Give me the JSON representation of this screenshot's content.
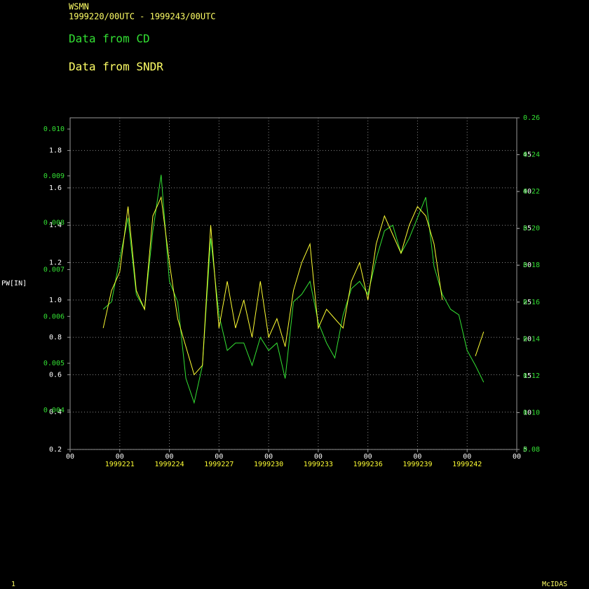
{
  "header": {
    "station": "WSMN",
    "period": "1999220/00UTC - 1999243/00UTC",
    "status": "1",
    "software": "McIDAS"
  },
  "chart_data": {
    "type": "line",
    "x": [
      220,
      220.5,
      221,
      221.5,
      222,
      222.5,
      223,
      223.5,
      224,
      224.5,
      225,
      225.5,
      226,
      226.5,
      227,
      227.5,
      228,
      228.5,
      229,
      229.5,
      230,
      230.5,
      231,
      231.5,
      232,
      232.5,
      233,
      233.5,
      234,
      234.5,
      235,
      235.5,
      236,
      236.5,
      237,
      237.5,
      238,
      238.5,
      239,
      239.5,
      240,
      240.5,
      241,
      241.5,
      242,
      242.5,
      243
    ],
    "xlim": [
      218,
      245
    ],
    "xticks": [
      {
        "value": 218,
        "label": "00"
      },
      {
        "value": 221,
        "label": "00"
      },
      {
        "value": 224,
        "label": "00"
      },
      {
        "value": 227,
        "label": "00"
      },
      {
        "value": 230,
        "label": "00"
      },
      {
        "value": 233,
        "label": "00"
      },
      {
        "value": 236,
        "label": "00"
      },
      {
        "value": 239,
        "label": "00"
      },
      {
        "value": 242,
        "label": "00"
      },
      {
        "value": 245,
        "label": "00"
      }
    ],
    "xtick_dates": [
      null,
      "1999221",
      "1999224",
      "1999227",
      "1999230",
      "1999233",
      "1999236",
      "1999239",
      "1999242",
      null
    ],
    "grid": true,
    "series": [
      {
        "name": "Data from CD",
        "color": "#33e033",
        "values": [
          0.95,
          0.99,
          1.22,
          1.44,
          1.03,
          0.95,
          1.37,
          1.67,
          1.1,
          0.99,
          0.58,
          0.45,
          0.65,
          1.33,
          0.92,
          0.73,
          0.77,
          0.77,
          0.65,
          0.8,
          0.73,
          0.77,
          0.58,
          0.99,
          1.03,
          1.1,
          0.88,
          0.77,
          0.69,
          0.92,
          1.06,
          1.1,
          1.03,
          1.22,
          1.37,
          1.4,
          1.25,
          1.33,
          1.44,
          1.55,
          1.18,
          1.03,
          0.95,
          0.92,
          0.73,
          0.65,
          0.56
        ]
      },
      {
        "name": "Data from SNDR",
        "color": "#ffff33",
        "values": [
          0.85,
          1.05,
          1.15,
          1.5,
          1.05,
          0.95,
          1.45,
          1.55,
          1.2,
          0.9,
          0.75,
          0.6,
          0.65,
          1.4,
          0.85,
          1.1,
          0.85,
          1.0,
          0.8,
          1.1,
          0.8,
          0.9,
          0.75,
          1.05,
          1.2,
          1.3,
          0.85,
          0.95,
          0.9,
          0.85,
          1.1,
          1.2,
          1.0,
          1.3,
          1.45,
          1.35,
          1.25,
          1.4,
          1.5,
          1.45,
          1.3,
          1.0,
          null,
          null,
          null,
          0.7,
          0.83
        ]
      }
    ],
    "axes": [
      {
        "name": "PW[IN]",
        "side": "left",
        "color": "#ffffff",
        "lim": [
          0.2,
          1.975
        ],
        "ticks": [
          0.2,
          0.4,
          0.6,
          0.8,
          {
            "value": 1.0,
            "label": "1.0"
          },
          1.2,
          1.4,
          1.6,
          1.8
        ]
      },
      {
        "side": "left",
        "color": "#33e033",
        "lim": [
          0.00316,
          0.01024
        ],
        "ticks": [
          0.004,
          0.005,
          0.006,
          0.007,
          0.008,
          0.009,
          {
            "value": 0.01,
            "label": "0.010"
          }
        ]
      },
      {
        "side": "right",
        "color": "#ffffff",
        "lim": [
          5,
          50
        ],
        "ticks": [
          5,
          10,
          15,
          20,
          25,
          30,
          35,
          40,
          45
        ]
      },
      {
        "side": "right",
        "color": "#33e033",
        "lim": [
          0.08,
          0.26
        ],
        "ticks": [
          0.08,
          {
            "value": 0.1,
            "label": "0.10"
          },
          0.12,
          0.14,
          0.16,
          0.18,
          {
            "value": 0.2,
            "label": "0.20"
          },
          0.22,
          0.24,
          0.26
        ]
      }
    ]
  }
}
